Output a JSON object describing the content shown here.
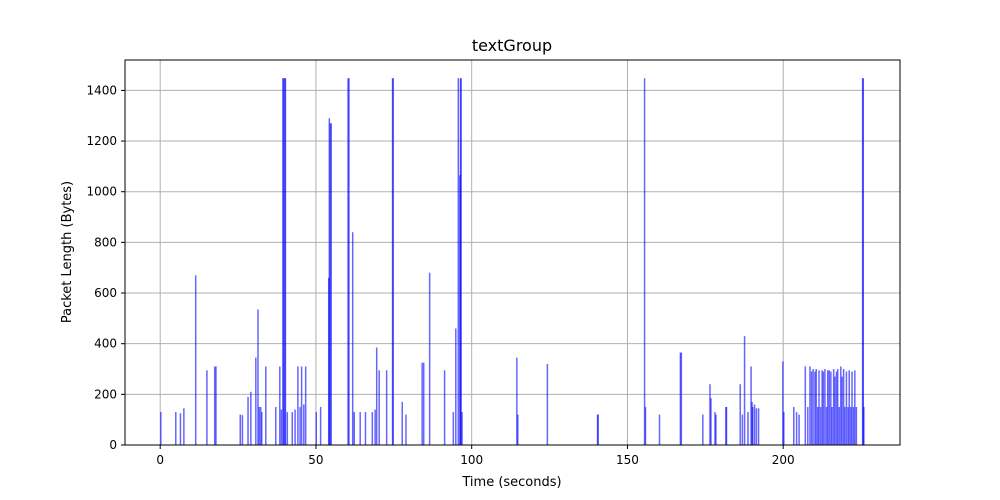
{
  "chart_data": {
    "type": "bar",
    "title": "textGroup",
    "xlabel": "Time (seconds)",
    "ylabel": "Packet Length (Bytes)",
    "xlim": [
      -11.3,
      237.5
    ],
    "ylim": [
      0,
      1520
    ],
    "xticks": [
      0,
      50,
      100,
      150,
      200
    ],
    "yticks": [
      0,
      200,
      400,
      600,
      800,
      1000,
      1200,
      1400
    ],
    "grid": true,
    "bar_color": "#0000ff",
    "series": [
      {
        "x": [
          0.2,
          5.0,
          6.5,
          7.6,
          11.4,
          15.0,
          17.5,
          17.9,
          25.7,
          26.4,
          28.2,
          29.1,
          30.7,
          31.4,
          31.8,
          32.3,
          32.6,
          33.9,
          37.1,
          38.4,
          38.9,
          39.4,
          39.6,
          40.0,
          40.2,
          40.8,
          42.4,
          43.3,
          44.2,
          44.9,
          45.4,
          46.1,
          46.7,
          50.1,
          51.5,
          54.1,
          54.3,
          54.6,
          54.9,
          60.3,
          60.6,
          61.8,
          62.3,
          64.2,
          65.9,
          68.1,
          69.0,
          69.5,
          70.3,
          72.7,
          74.6,
          74.8,
          77.7,
          78.9,
          84.1,
          84.6,
          86.5,
          91.3,
          94.1,
          94.9,
          95.7,
          96.2,
          96.4,
          96.6,
          96.9,
          114.5,
          114.8,
          124.3,
          140.4,
          140.6,
          155.5,
          155.8,
          160.3,
          167.0,
          167.3,
          174.2,
          176.5,
          176.8,
          178.1,
          178.4,
          181.6,
          181.8,
          186.2,
          186.9,
          187.6,
          188.7,
          189.7,
          190.0,
          190.2,
          190.8,
          191.4,
          192.1,
          199.9,
          200.2,
          203.4,
          204.3,
          205.1,
          207.1,
          207.9,
          208.6,
          209.1,
          209.6,
          210.2,
          210.6,
          211.1,
          211.5,
          212.0,
          212.5,
          212.9,
          213.4,
          213.9,
          214.3,
          214.8,
          215.3,
          215.7,
          216.2,
          216.6,
          217.1,
          217.5,
          218.0,
          218.5,
          218.9,
          219.4,
          219.8,
          220.3,
          220.8,
          221.2,
          221.7,
          222.1,
          222.6,
          223.0,
          223.5,
          225.5,
          225.7,
          225.9
        ],
        "values": [
          130,
          130,
          125,
          145,
          670,
          295,
          310,
          310,
          120,
          118,
          190,
          210,
          345,
          535,
          150,
          150,
          130,
          310,
          150,
          310,
          140,
          1448,
          1448,
          1448,
          1448,
          130,
          130,
          140,
          310,
          150,
          310,
          160,
          310,
          130,
          150,
          660,
          1290,
          1270,
          1270,
          1448,
          1448,
          840,
          130,
          130,
          130,
          130,
          140,
          385,
          295,
          295,
          1448,
          1448,
          170,
          120,
          325,
          325,
          680,
          295,
          130,
          460,
          1448,
          1065,
          1448,
          1448,
          130,
          345,
          120,
          320,
          120,
          120,
          1448,
          150,
          120,
          365,
          365,
          120,
          240,
          185,
          130,
          120,
          150,
          150,
          240,
          120,
          430,
          130,
          310,
          170,
          150,
          160,
          145,
          145,
          330,
          130,
          150,
          130,
          120,
          310,
          150,
          310,
          290,
          300,
          290,
          300,
          150,
          295,
          150,
          295,
          290,
          300,
          150,
          295,
          295,
          290,
          150,
          300,
          270,
          290,
          300,
          150,
          310,
          270,
          300,
          150,
          290,
          150,
          295,
          150,
          290,
          150,
          295,
          150,
          1448,
          1448,
          150
        ]
      }
    ]
  }
}
